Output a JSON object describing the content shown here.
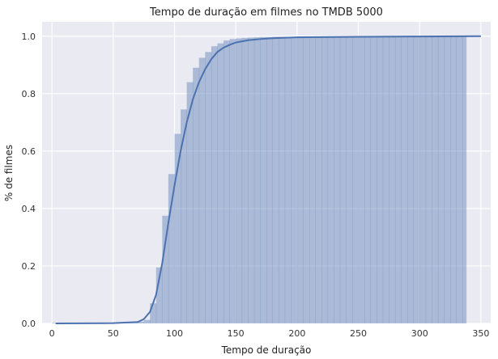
{
  "chart_data": {
    "type": "area",
    "title": "Tempo de duração em filmes no TMDB 5000",
    "xlabel": "Tempo de duração",
    "ylabel": "% de filmes",
    "xlim": [
      -8,
      358
    ],
    "ylim": [
      0,
      1.05
    ],
    "x_ticks": [
      0,
      50,
      100,
      150,
      200,
      250,
      300,
      350
    ],
    "y_ticks": [
      0.0,
      0.2,
      0.4,
      0.6,
      0.8,
      1.0
    ],
    "grid": true,
    "legend": "none",
    "background_color": "#EAEAF2",
    "series": [
      {
        "kind": "histogram",
        "color": "#4C72B0",
        "opacity": 0.4,
        "bin_edges": [
          0,
          5,
          10,
          15,
          20,
          25,
          30,
          35,
          40,
          45,
          50,
          55,
          60,
          65,
          70,
          75,
          80,
          85,
          90,
          95,
          100,
          105,
          110,
          115,
          120,
          125,
          130,
          135,
          140,
          145,
          150,
          155,
          160,
          165,
          170,
          175,
          180,
          185,
          190,
          195,
          200,
          205,
          210,
          215,
          220,
          225,
          230,
          235,
          240,
          245,
          250,
          255,
          260,
          265,
          270,
          275,
          280,
          285,
          290,
          295,
          300,
          305,
          310,
          315,
          320,
          325,
          330,
          335,
          338
        ],
        "cumulative": [
          0.002,
          0.002,
          0.002,
          0.002,
          0.002,
          0.002,
          0.002,
          0.002,
          0.002,
          0.002,
          0.002,
          0.003,
          0.003,
          0.004,
          0.006,
          0.012,
          0.07,
          0.195,
          0.375,
          0.52,
          0.66,
          0.745,
          0.84,
          0.89,
          0.925,
          0.945,
          0.965,
          0.975,
          0.985,
          0.99,
          0.992,
          0.994,
          0.995,
          0.996,
          0.997,
          0.997,
          0.998,
          0.998,
          0.998,
          0.998,
          0.999,
          0.999,
          0.999,
          0.999,
          0.999,
          0.999,
          0.999,
          0.999,
          0.999,
          0.999,
          0.999,
          0.999,
          0.999,
          0.999,
          0.999,
          0.999,
          0.999,
          0.999,
          0.999,
          0.999,
          0.999,
          0.999,
          0.999,
          0.999,
          0.999,
          0.999,
          0.999,
          1.0
        ]
      },
      {
        "kind": "line",
        "color": "#4C72B0",
        "x": [
          3,
          50,
          70,
          75,
          80,
          85,
          90,
          95,
          100,
          105,
          110,
          115,
          120,
          125,
          130,
          135,
          140,
          145,
          150,
          160,
          170,
          180,
          200,
          250,
          300,
          350
        ],
        "y": [
          0.0,
          0.001,
          0.005,
          0.015,
          0.04,
          0.1,
          0.21,
          0.35,
          0.48,
          0.6,
          0.7,
          0.78,
          0.84,
          0.885,
          0.92,
          0.945,
          0.96,
          0.97,
          0.978,
          0.986,
          0.99,
          0.993,
          0.996,
          0.998,
          0.999,
          1.0
        ]
      }
    ]
  }
}
